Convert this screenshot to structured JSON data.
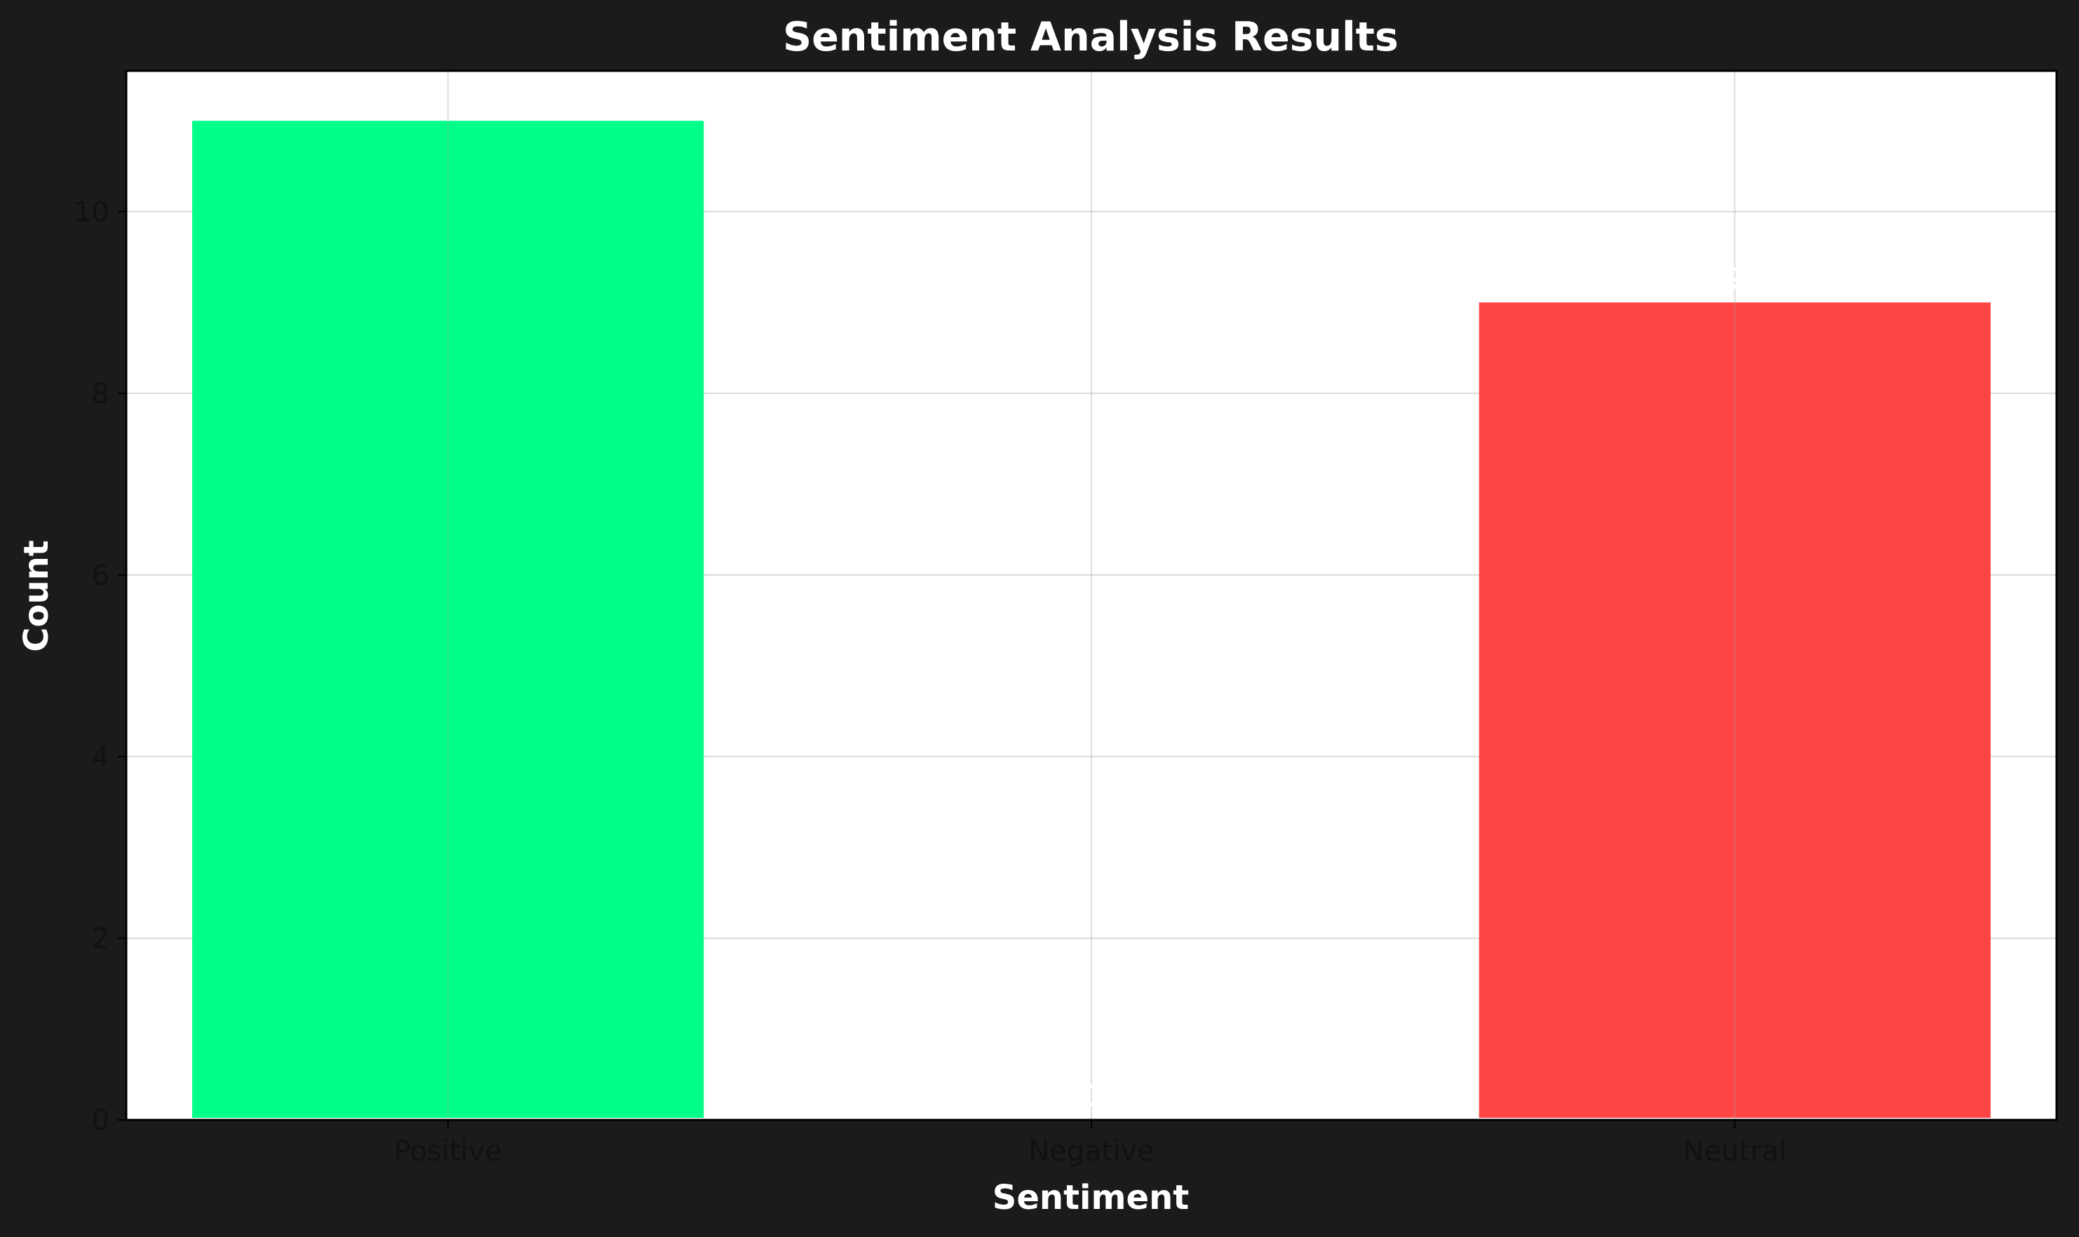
{
  "chart_data": {
    "type": "bar",
    "title": "Sentiment Analysis Results",
    "xlabel": "Sentiment",
    "ylabel": "Count",
    "categories": [
      "Positive",
      "Negative",
      "Neutral"
    ],
    "values": [
      11,
      0,
      9
    ],
    "colors": [
      "#00ff88",
      "#ff0055",
      "#ff4444"
    ],
    "ylim": [
      0,
      11.55
    ],
    "yticks": [
      0,
      2,
      4,
      6,
      8,
      10
    ],
    "ytick_labels": [
      "0",
      "2",
      "4",
      "6",
      "8",
      "10"
    ],
    "data_labels": [
      "11",
      "0",
      "9"
    ],
    "grid": true,
    "background": "#1b1b1b",
    "plot_background": "#ffffff",
    "text_color": "#ffffff",
    "tick_color": "#111111"
  }
}
